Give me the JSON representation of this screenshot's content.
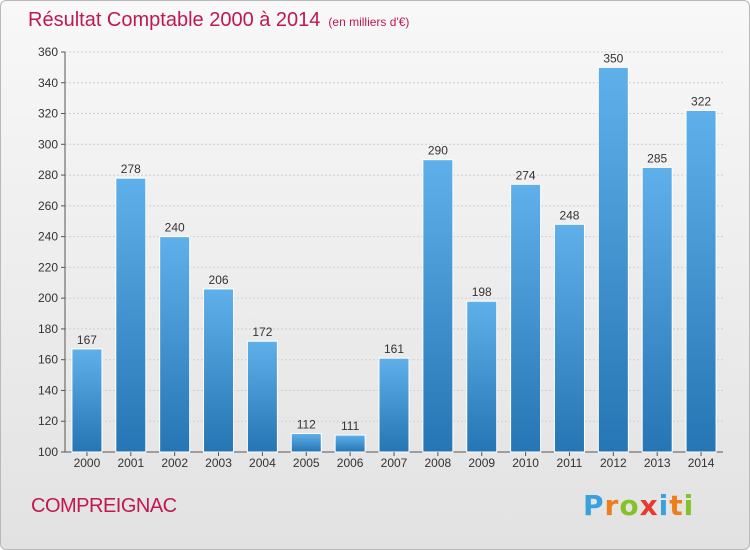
{
  "title": {
    "main": "Résultat Comptable 2000 à 2014",
    "unit": "(en milliers d'€)"
  },
  "place": "COMPREIGNAC",
  "logo": {
    "letters": [
      "P",
      "r",
      "o",
      "x",
      "i",
      "t",
      "i"
    ],
    "colors": [
      "#3aa0de",
      "#ef7d1a",
      "#84c225",
      "#e63c2f",
      "#3aa0de",
      "#ef7d1a",
      "#84c225"
    ]
  },
  "colors": {
    "title": "#c0184f",
    "bar_light": "#5fb0ea",
    "bar_dark": "#2675b4"
  },
  "chart_data": {
    "type": "bar",
    "categories": [
      "2000",
      "2001",
      "2002",
      "2003",
      "2004",
      "2005",
      "2006",
      "2007",
      "2008",
      "2009",
      "2010",
      "2011",
      "2012",
      "2013",
      "2014"
    ],
    "values": [
      167,
      278,
      240,
      206,
      172,
      112,
      111,
      161,
      290,
      198,
      274,
      248,
      350,
      285,
      322
    ],
    "ylim": [
      100,
      360
    ],
    "yticks": [
      100,
      120,
      140,
      160,
      180,
      200,
      220,
      240,
      260,
      280,
      300,
      320,
      340,
      360
    ],
    "grid": true,
    "legend": "none"
  }
}
